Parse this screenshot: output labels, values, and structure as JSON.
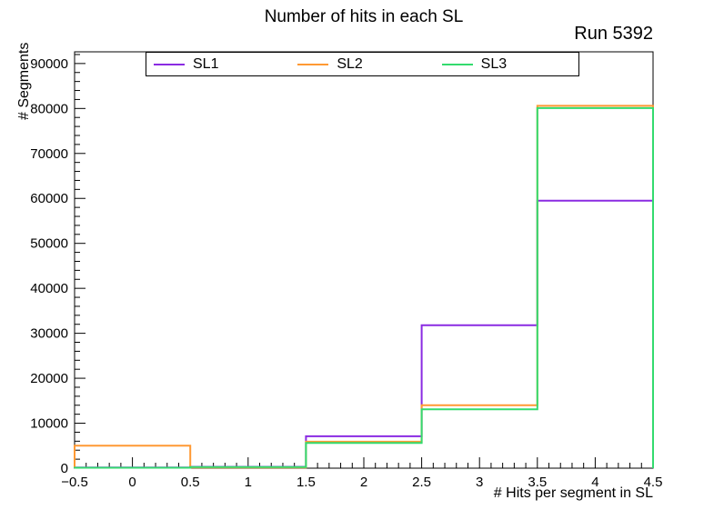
{
  "title": "Number of hits in each SL",
  "run_label": "Run 5392",
  "chart_data": {
    "type": "step-histogram",
    "title": "Number of hits in each SL",
    "annotation": "Run 5392",
    "xlabel": "# Hits per segment in SL",
    "ylabel": "# Segments",
    "xlim": [
      -0.5,
      4.5
    ],
    "ylim": [
      0,
      92600
    ],
    "bin_edges": [
      -0.5,
      0.5,
      1.5,
      2.5,
      3.5,
      4.5
    ],
    "bin_centers": [
      0,
      1,
      2,
      3,
      4
    ],
    "x_major_ticks": [
      -0.5,
      0,
      0.5,
      1,
      1.5,
      2,
      2.5,
      3,
      3.5,
      4,
      4.5
    ],
    "x_tick_labels": [
      "−0.5",
      "0",
      "0.5",
      "1",
      "1.5",
      "2",
      "2.5",
      "3",
      "3.5",
      "4",
      "4.5"
    ],
    "x_minor_step": 0.1,
    "y_major_ticks": [
      0,
      10000,
      20000,
      30000,
      40000,
      50000,
      60000,
      70000,
      80000,
      90000
    ],
    "y_tick_labels": [
      "0",
      "10000",
      "20000",
      "30000",
      "40000",
      "50000",
      "60000",
      "70000",
      "80000",
      "90000"
    ],
    "y_minor_step": 2000,
    "grid": false,
    "legend_position": "top-inside",
    "series": [
      {
        "name": "SL1",
        "color": "#8A2BE2",
        "values": [
          150,
          300,
          7100,
          31800,
          59500
        ]
      },
      {
        "name": "SL2",
        "color": "#FF9933",
        "values": [
          5000,
          150,
          5900,
          14000,
          80600
        ]
      },
      {
        "name": "SL3",
        "color": "#33DB6E",
        "values": [
          100,
          250,
          5600,
          13100,
          80100
        ]
      }
    ]
  }
}
